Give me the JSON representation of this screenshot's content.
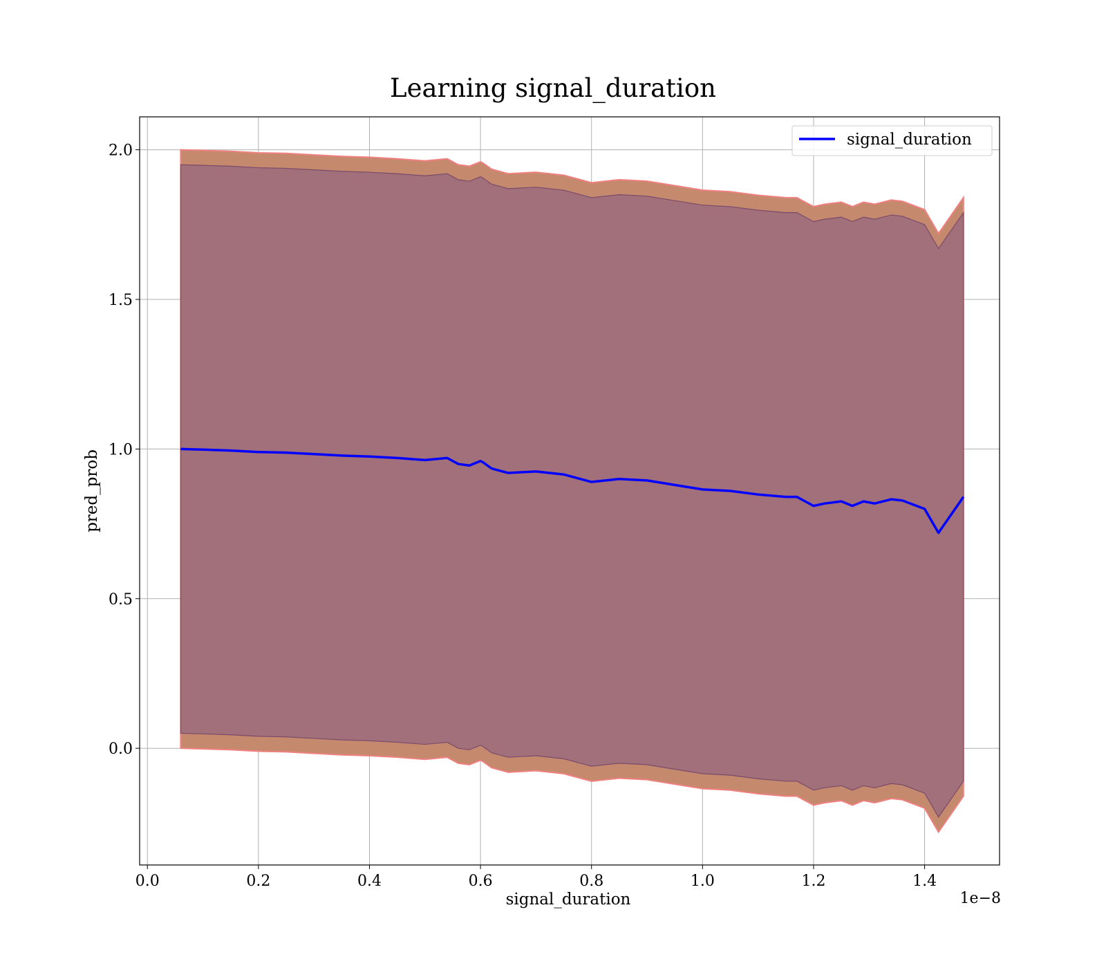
{
  "chart_data": {
    "type": "line",
    "title": "Learning signal_duration",
    "xlabel": "signal_duration",
    "ylabel": "pred_prob",
    "x_offset_text": "1e−8",
    "x_scale_note": "1e-8",
    "xlim": [
      -0.014,
      1.535
    ],
    "ylim": [
      -0.39,
      2.11
    ],
    "xticks": [
      0.0,
      0.2,
      0.4,
      0.6,
      0.8,
      1.0,
      1.2,
      1.4
    ],
    "xtick_labels": [
      "0.0",
      "0.2",
      "0.4",
      "0.6",
      "0.8",
      "1.0",
      "1.2",
      "1.4"
    ],
    "yticks": [
      0.0,
      0.5,
      1.0,
      1.5,
      2.0
    ],
    "ytick_labels": [
      "0.0",
      "0.5",
      "1.0",
      "1.5",
      "2.0"
    ],
    "grid": true,
    "legend_position": "top-right",
    "legend_entries": [
      "signal_duration"
    ],
    "colors": {
      "line": "#0000ff",
      "outer_band": "#c58a6e",
      "outer_band_edge": "#f08080",
      "inner_band": "#a1707a",
      "inner_band_edge": "#7a4a6a",
      "grid": "#b0b0b0"
    },
    "series": [
      {
        "name": "signal_duration",
        "x": [
          0.06,
          0.1,
          0.15,
          0.2,
          0.25,
          0.3,
          0.35,
          0.4,
          0.45,
          0.5,
          0.54,
          0.56,
          0.58,
          0.6,
          0.605,
          0.62,
          0.65,
          0.7,
          0.75,
          0.8,
          0.85,
          0.9,
          0.95,
          1.0,
          1.05,
          1.1,
          1.15,
          1.17,
          1.2,
          1.22,
          1.25,
          1.27,
          1.29,
          1.31,
          1.34,
          1.36,
          1.4,
          1.425,
          1.47
        ],
        "y": [
          1.0,
          0.998,
          0.995,
          0.99,
          0.988,
          0.983,
          0.978,
          0.975,
          0.97,
          0.963,
          0.97,
          0.95,
          0.945,
          0.96,
          0.955,
          0.935,
          0.92,
          0.925,
          0.915,
          0.89,
          0.9,
          0.895,
          0.88,
          0.865,
          0.86,
          0.848,
          0.84,
          0.84,
          0.81,
          0.818,
          0.825,
          0.81,
          0.825,
          0.818,
          0.832,
          0.828,
          0.8,
          0.72,
          0.84
        ],
        "inner_band": {
          "lower": "y - 0.95",
          "upper": "y + 0.95"
        },
        "outer_band": {
          "lower": "y - 1.0",
          "upper": "y + 1.0"
        }
      }
    ]
  }
}
